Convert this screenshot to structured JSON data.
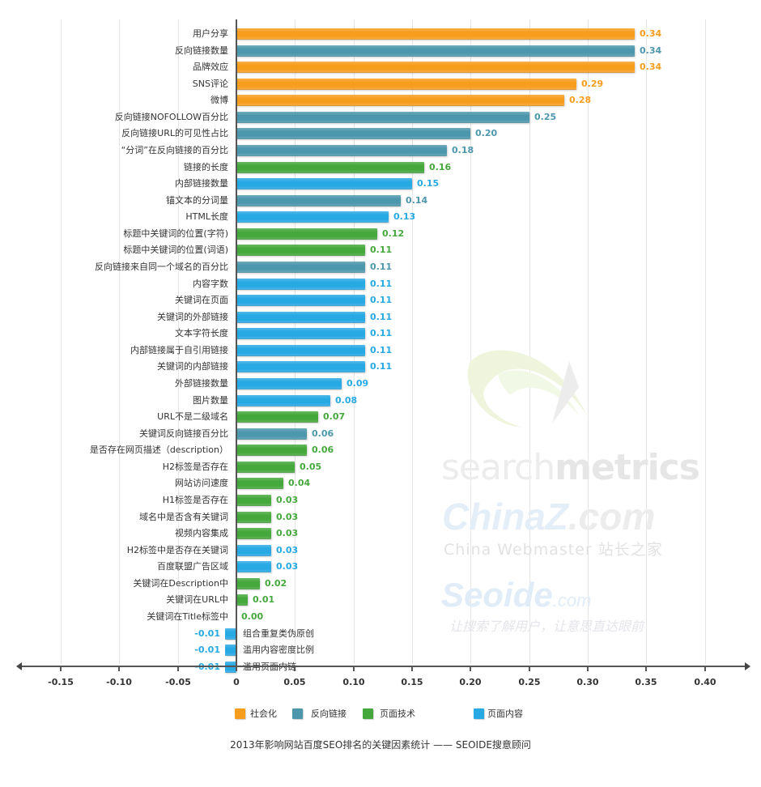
{
  "colors": {
    "social": "#f79d1e",
    "backlink": "#4d97ad",
    "tech": "#45a83c",
    "content": "#27a9e4"
  },
  "watermarks": {
    "searchmetrics_light": "search",
    "searchmetrics_bold": "metrics",
    "chinaz_main": "ChinaZ",
    "chinaz_com": ".com",
    "chinaz_sub": "China Webmaster 站长之家",
    "seoide_main": "Seoide",
    "seoide_com": ".com",
    "seoide_slogan": "让搜索了解用户，让意思直达眼前"
  },
  "legend": [
    {
      "label": "社会化",
      "key": "social"
    },
    {
      "label": "反向链接",
      "key": "backlink"
    },
    {
      "label": "页面技术",
      "key": "tech"
    },
    {
      "label": "页面内容",
      "key": "content"
    }
  ],
  "caption": "2013年影响网站百度SEO排名的关键因素统计 —— SEOIDE搜意顾问",
  "chart_data": {
    "type": "bar",
    "orientation": "horizontal",
    "title": "2013年影响网站百度SEO排名的关键因素统计 —— SEOIDE搜意顾问",
    "xlabel": "",
    "ylabel": "",
    "xlim": [
      -0.17,
      0.43
    ],
    "xticks": [
      -0.15,
      -0.1,
      -0.05,
      0,
      0.05,
      0.1,
      0.15,
      0.2,
      0.25,
      0.3,
      0.35,
      0.4
    ],
    "xtick_labels": [
      "-0.15",
      "-0.10",
      "-0.05",
      "0",
      "0.05",
      "0.10",
      "0.15",
      "0.20",
      "0.25",
      "0.30",
      "0.35",
      "0.40"
    ],
    "grid": "vertical",
    "legend_position": "bottom",
    "series_keys": [
      "social",
      "backlink",
      "tech",
      "content"
    ],
    "series_names": {
      "social": "社会化",
      "backlink": "反向链接",
      "tech": "页面技术",
      "content": "页面内容"
    },
    "categories": [
      "用户分享",
      "反向链接数量",
      "品牌效应",
      "SNS评论",
      "微博",
      "反向链接NOFOLLOW百分比",
      "反向链接URL的可见性占比",
      "“分词”在反向链接的百分比",
      "链接的长度",
      "内部链接数量",
      "锚文本的分词量",
      "HTML长度",
      "标题中关键词的位置(字符)",
      "标题中关键词的位置(词语)",
      "反向链接来自同一个域名的百分比",
      "内容字数",
      "关键词在页面",
      "关键词的外部链接",
      "文本字符长度",
      "内部链接属于自引用链接",
      "关键词的内部链接",
      "外部链接数量",
      "图片数量",
      "URL不是二级域名",
      "关键词反向链接百分比",
      "是否存在网页描述（description）",
      "H2标签是否存在",
      "网站访问速度",
      "H1标签是否存在",
      "域名中是否含有关键词",
      "视频内容集成",
      "H2标签中是否存在关键词",
      "百度联盟广告区域",
      "关键词在Description中",
      "关键词在URL中",
      "关键词在Title标签中",
      "组合重复类伪原创",
      "滥用内容密度比例",
      "滥用页面内链"
    ],
    "rows": [
      {
        "label": "用户分享",
        "value": 0.34,
        "value_label": "0.34",
        "series": "social"
      },
      {
        "label": "反向链接数量",
        "value": 0.34,
        "value_label": "0.34",
        "series": "backlink"
      },
      {
        "label": "品牌效应",
        "value": 0.34,
        "value_label": "0.34",
        "series": "social"
      },
      {
        "label": "SNS评论",
        "value": 0.29,
        "value_label": "0.29",
        "series": "social"
      },
      {
        "label": "微博",
        "value": 0.28,
        "value_label": "0.28",
        "series": "social"
      },
      {
        "label": "反向链接NOFOLLOW百分比",
        "value": 0.25,
        "value_label": "0.25",
        "series": "backlink"
      },
      {
        "label": "反向链接URL的可见性占比",
        "value": 0.2,
        "value_label": "0.20",
        "series": "backlink"
      },
      {
        "label": "“分词”在反向链接的百分比",
        "value": 0.18,
        "value_label": "0.18",
        "series": "backlink"
      },
      {
        "label": "链接的长度",
        "value": 0.16,
        "value_label": "0.16",
        "series": "tech"
      },
      {
        "label": "内部链接数量",
        "value": 0.15,
        "value_label": "0.15",
        "series": "content"
      },
      {
        "label": "锚文本的分词量",
        "value": 0.14,
        "value_label": "0.14",
        "series": "backlink"
      },
      {
        "label": "HTML长度",
        "value": 0.13,
        "value_label": "0.13",
        "series": "content"
      },
      {
        "label": "标题中关键词的位置(字符)",
        "value": 0.12,
        "value_label": "0.12",
        "series": "tech"
      },
      {
        "label": "标题中关键词的位置(词语)",
        "value": 0.11,
        "value_label": "0.11",
        "series": "tech"
      },
      {
        "label": "反向链接来自同一个域名的百分比",
        "value": 0.11,
        "value_label": "0.11",
        "series": "backlink"
      },
      {
        "label": "内容字数",
        "value": 0.11,
        "value_label": "0.11",
        "series": "content"
      },
      {
        "label": "关键词在页面",
        "value": 0.11,
        "value_label": "0.11",
        "series": "content"
      },
      {
        "label": "关键词的外部链接",
        "value": 0.11,
        "value_label": "0.11",
        "series": "content"
      },
      {
        "label": "文本字符长度",
        "value": 0.11,
        "value_label": "0.11",
        "series": "content"
      },
      {
        "label": "内部链接属于自引用链接",
        "value": 0.11,
        "value_label": "0.11",
        "series": "content"
      },
      {
        "label": "关键词的内部链接",
        "value": 0.11,
        "value_label": "0.11",
        "series": "content"
      },
      {
        "label": "外部链接数量",
        "value": 0.09,
        "value_label": "0.09",
        "series": "content"
      },
      {
        "label": "图片数量",
        "value": 0.08,
        "value_label": "0.08",
        "series": "content"
      },
      {
        "label": "URL不是二级域名",
        "value": 0.07,
        "value_label": "0.07",
        "series": "tech"
      },
      {
        "label": "关键词反向链接百分比",
        "value": 0.06,
        "value_label": "0.06",
        "series": "backlink"
      },
      {
        "label": "是否存在网页描述（description）",
        "value": 0.06,
        "value_label": "0.06",
        "series": "tech"
      },
      {
        "label": "H2标签是否存在",
        "value": 0.05,
        "value_label": "0.05",
        "series": "tech"
      },
      {
        "label": "网站访问速度",
        "value": 0.04,
        "value_label": "0.04",
        "series": "tech"
      },
      {
        "label": "H1标签是否存在",
        "value": 0.03,
        "value_label": "0.03",
        "series": "tech"
      },
      {
        "label": "域名中是否含有关键词",
        "value": 0.03,
        "value_label": "0.03",
        "series": "tech"
      },
      {
        "label": "视频内容集成",
        "value": 0.03,
        "value_label": "0.03",
        "series": "tech"
      },
      {
        "label": "H2标签中是否存在关键词",
        "value": 0.03,
        "value_label": "0.03",
        "series": "content"
      },
      {
        "label": "百度联盟广告区域",
        "value": 0.03,
        "value_label": "0.03",
        "series": "content"
      },
      {
        "label": "关键词在Description中",
        "value": 0.02,
        "value_label": "0.02",
        "series": "tech"
      },
      {
        "label": "关键词在URL中",
        "value": 0.01,
        "value_label": "0.01",
        "series": "tech"
      },
      {
        "label": "关键词在Title标签中",
        "value": 0.0,
        "value_label": "0.00",
        "series": "tech"
      },
      {
        "label": "组合重复类伪原创",
        "value": -0.01,
        "value_label": "-0.01",
        "series": "content"
      },
      {
        "label": "滥用内容密度比例",
        "value": -0.01,
        "value_label": "-0.01",
        "series": "content"
      },
      {
        "label": "滥用页面内链",
        "value": -0.01,
        "value_label": "-0.01",
        "series": "content"
      }
    ]
  }
}
